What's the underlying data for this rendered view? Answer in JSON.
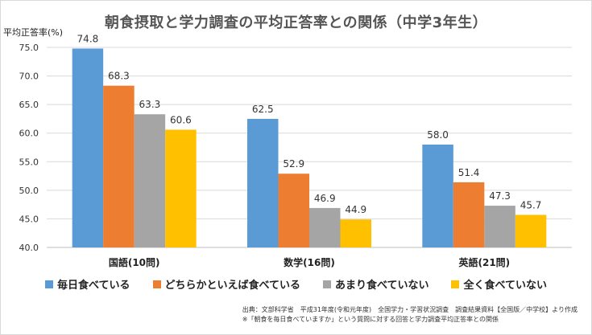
{
  "chart_data": {
    "type": "bar",
    "title": "朝食摂取と学力調査の平均正答率との関係（中学3年生）",
    "ylabel": "平均正答率(%)",
    "xlabel": "",
    "ylim": [
      40,
      75
    ],
    "yticks": [
      "75.0",
      "70.0",
      "65.0",
      "60.0",
      "55.0",
      "50.0",
      "45.0",
      "40.0"
    ],
    "grid": true,
    "legend_position": "bottom",
    "categories": [
      "国語(10問)",
      "数学(16問)",
      "英語(21問)"
    ],
    "series": [
      {
        "name": "毎日食べている",
        "color": "#5b9bd5",
        "values": [
          74.8,
          62.5,
          58.0
        ],
        "labels": [
          "74.8",
          "62.5",
          "58.0"
        ]
      },
      {
        "name": "どちらかといえば食べている",
        "color": "#ed7d31",
        "values": [
          68.3,
          52.9,
          51.4
        ],
        "labels": [
          "68.3",
          "52.9",
          "51.4"
        ]
      },
      {
        "name": "あまり食べていない",
        "color": "#a5a5a5",
        "values": [
          63.3,
          46.9,
          47.3
        ],
        "labels": [
          "63.3",
          "46.9",
          "47.3"
        ]
      },
      {
        "name": "全く食べていない",
        "color": "#ffc000",
        "values": [
          60.6,
          44.9,
          45.7
        ],
        "labels": [
          "60.6",
          "44.9",
          "45.7"
        ]
      }
    ]
  },
  "source": {
    "line1": "出典：文部科学省　平成31年度(令和元年度)　全国学力・学習状況調査　調査結果資料【全国版／中学校】より作成",
    "line2": "※「朝食を毎日食べていますか」という質問に対する回答と学力調査平均正答率との関係"
  }
}
